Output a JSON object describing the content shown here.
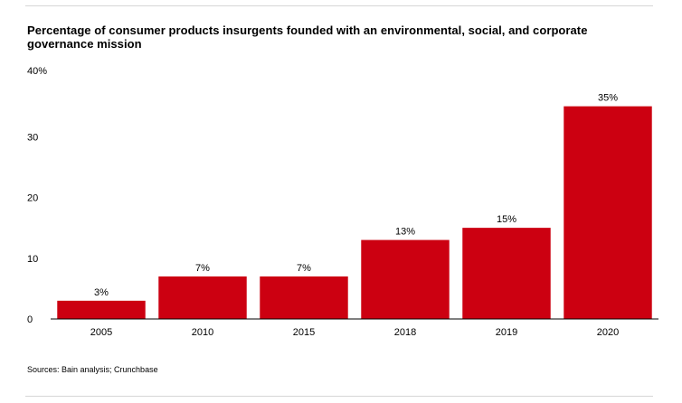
{
  "chart_data": {
    "type": "bar",
    "title": "Percentage of consumer products insurgents founded with an environmental, social, and corporate governance mission",
    "categories": [
      "2005",
      "2010",
      "2015",
      "2018",
      "2019",
      "2020"
    ],
    "values": [
      3,
      7,
      7,
      13,
      15,
      35
    ],
    "data_labels": [
      "3%",
      "7%",
      "7%",
      "13%",
      "15%",
      "35%"
    ],
    "yticks": [
      0,
      10,
      20,
      30,
      40
    ],
    "ytick_labels": [
      "0",
      "10",
      "20",
      "30",
      "40%"
    ],
    "ylim": [
      0,
      40
    ],
    "xlabel": "",
    "ylabel": "",
    "grid": false,
    "legend": "none",
    "bar_color": "#cc0011",
    "source": "Sources: Bain analysis; Crunchbase"
  }
}
